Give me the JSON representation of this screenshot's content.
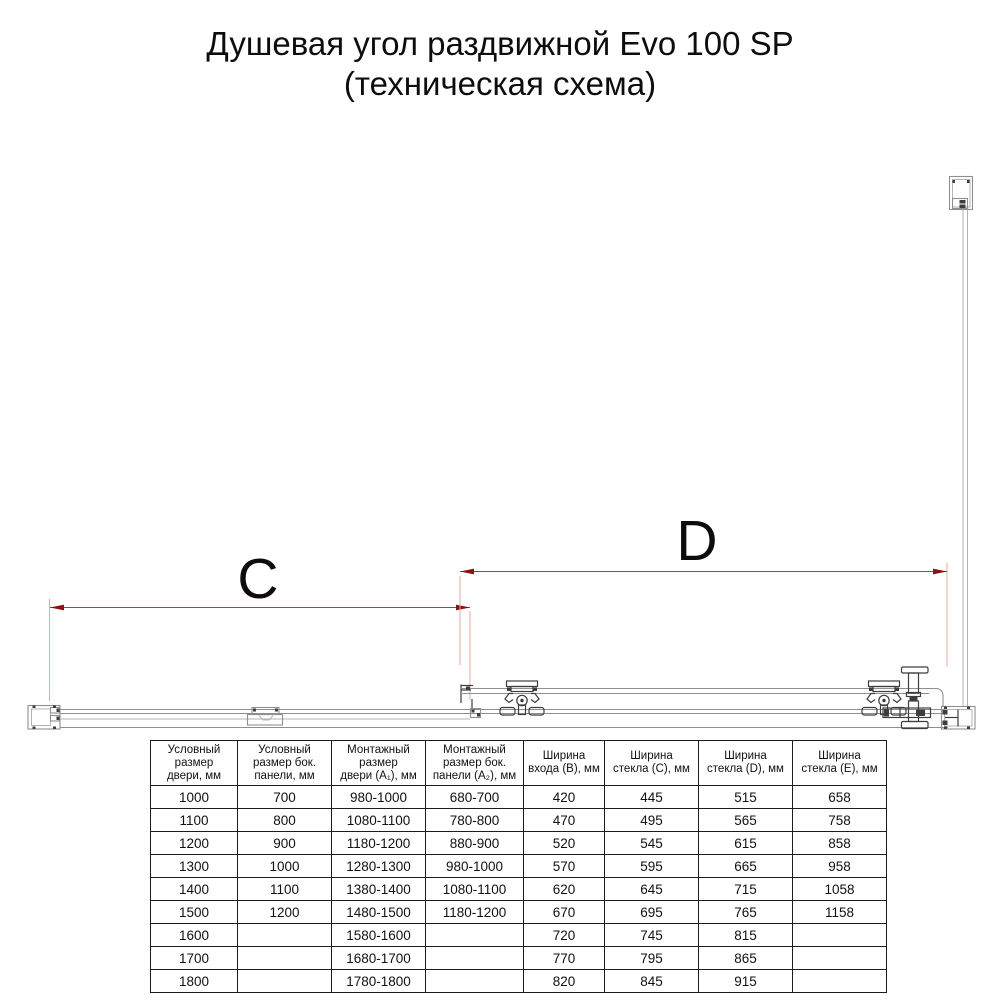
{
  "title": {
    "line1": "Душевая угол раздвижной Evo 100 SP",
    "line2": "(техническая схема)"
  },
  "diagram": {
    "dim_c_label": "C",
    "dim_d_label": "D",
    "colors": {
      "dimension_line": "#c03a2b",
      "extension_line": "#e6ab9f",
      "arrow": "#8e1111",
      "profile_outline": "#8f8f8f",
      "hardware_detail": "#3d3d3d"
    }
  },
  "table": {
    "headers": [
      "Условный\nразмер\nдвери, мм",
      "Условный\nразмер бок.\nпанели, мм",
      "Монтажный\nразмер\nдвери (A₁), мм",
      "Монтажный\nразмер бок.\nпанели (A₂), мм",
      "Ширина\nвхода (B), мм",
      "Ширина\nстекла (C), мм",
      "Ширина\nстекла (D), мм",
      "Ширина\nстекла (E), мм"
    ],
    "rows": [
      [
        "1000",
        "700",
        "980-1000",
        "680-700",
        "420",
        "445",
        "515",
        "658"
      ],
      [
        "1100",
        "800",
        "1080-1100",
        "780-800",
        "470",
        "495",
        "565",
        "758"
      ],
      [
        "1200",
        "900",
        "1180-1200",
        "880-900",
        "520",
        "545",
        "615",
        "858"
      ],
      [
        "1300",
        "1000",
        "1280-1300",
        "980-1000",
        "570",
        "595",
        "665",
        "958"
      ],
      [
        "1400",
        "1100",
        "1380-1400",
        "1080-1100",
        "620",
        "645",
        "715",
        "1058"
      ],
      [
        "1500",
        "1200",
        "1480-1500",
        "1180-1200",
        "670",
        "695",
        "765",
        "1158"
      ],
      [
        "1600",
        "",
        "1580-1600",
        "",
        "720",
        "745",
        "815",
        ""
      ],
      [
        "1700",
        "",
        "1680-1700",
        "",
        "770",
        "795",
        "865",
        ""
      ],
      [
        "1800",
        "",
        "1780-1800",
        "",
        "820",
        "845",
        "915",
        ""
      ]
    ]
  }
}
